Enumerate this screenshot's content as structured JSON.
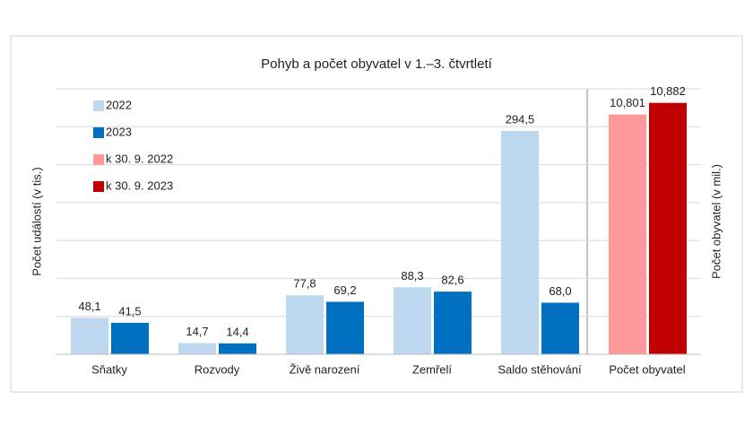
{
  "chart_data": {
    "type": "bar",
    "title": "Pohyb a počet obyvatel v 1.–3. čtvrtletí",
    "y_label": "Počet událostí  (v tis.)",
    "y2_label": "Počet obyvatel  (v mil.)",
    "categories": [
      "Sňatky",
      "Rozvody",
      "Živě narození",
      "Zemřelí",
      "Saldo stěhování",
      "Počet obyvatel"
    ],
    "series": [
      {
        "name": "2022",
        "color": "#bdd7ee",
        "values": [
          48.1,
          14.7,
          77.8,
          88.3,
          294.5,
          null
        ],
        "value_labels": [
          "48,1",
          "14,7",
          "77,8",
          "88,3",
          "294,5",
          null
        ]
      },
      {
        "name": "2023",
        "color": "#0070c0",
        "values": [
          41.5,
          14.4,
          69.2,
          82.6,
          68.0,
          null
        ],
        "value_labels": [
          "41,5",
          "14,4",
          "69,2",
          "82,6",
          "68,0",
          null
        ]
      },
      {
        "name": "k 30. 9. 2022",
        "color": "#ff9999",
        "axis": "y2",
        "values": [
          null,
          null,
          null,
          null,
          null,
          10.801
        ],
        "value_labels": [
          null,
          null,
          null,
          null,
          null,
          "10,801"
        ]
      },
      {
        "name": "k 30. 9. 2023",
        "color": "#c00000",
        "axis": "y2",
        "values": [
          null,
          null,
          null,
          null,
          null,
          10.882
        ],
        "value_labels": [
          null,
          null,
          null,
          null,
          null,
          "10,882"
        ]
      }
    ],
    "ylim": [
      0,
      350
    ],
    "yticks": [
      0,
      50,
      100,
      150,
      200,
      250,
      300,
      350
    ],
    "y2lim": [
      9.13,
      10.98
    ],
    "grid": true,
    "legend": "upper left"
  }
}
